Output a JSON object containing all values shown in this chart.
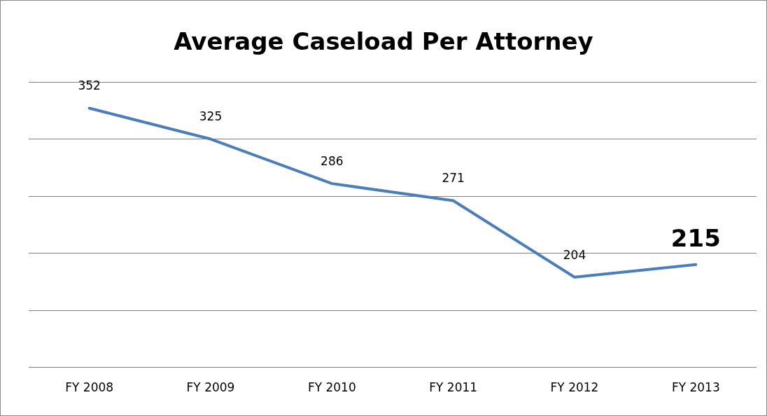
{
  "chart_data": {
    "type": "line",
    "title": "Average Caseload Per Attorney",
    "categories": [
      "FY 2008",
      "FY 2009",
      "FY 2010",
      "FY 2011",
      "FY 2012",
      "FY 2013"
    ],
    "series": [
      {
        "color": "#4a7ebb",
        "values": [
          352,
          325,
          286,
          271,
          204,
          215
        ]
      }
    ],
    "ylim": [
      125,
      375
    ],
    "yticks": [
      {
        "value": 125,
        "label": null
      },
      {
        "value": 175,
        "label": null
      },
      {
        "value": 225,
        "label": null
      },
      {
        "value": 275,
        "label": null
      },
      {
        "value": 325,
        "label": null
      },
      {
        "value": 375,
        "label": null
      }
    ],
    "grid": "y",
    "tick_labels": "x",
    "legend": false,
    "marker": "none",
    "line_style": "solid",
    "data_labels": true
  }
}
